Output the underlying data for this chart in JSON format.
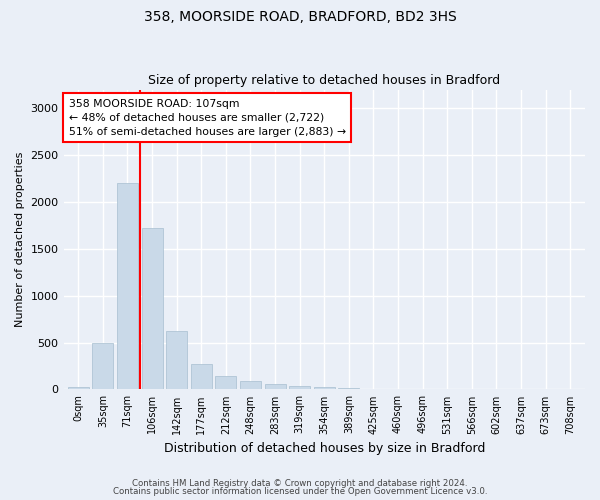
{
  "title": "358, MOORSIDE ROAD, BRADFORD, BD2 3HS",
  "subtitle": "Size of property relative to detached houses in Bradford",
  "xlabel": "Distribution of detached houses by size in Bradford",
  "ylabel": "Number of detached properties",
  "bar_labels": [
    "0sqm",
    "35sqm",
    "71sqm",
    "106sqm",
    "142sqm",
    "177sqm",
    "212sqm",
    "248sqm",
    "283sqm",
    "319sqm",
    "354sqm",
    "389sqm",
    "425sqm",
    "460sqm",
    "496sqm",
    "531sqm",
    "566sqm",
    "602sqm",
    "637sqm",
    "673sqm",
    "708sqm"
  ],
  "bar_values": [
    25,
    500,
    2200,
    1725,
    625,
    270,
    140,
    90,
    55,
    40,
    25,
    15,
    8,
    5,
    3,
    2,
    1,
    1,
    0,
    0,
    0
  ],
  "bar_color": "#c9d9e8",
  "bar_edge_color": "#a8bfd0",
  "bg_color": "#eaeff7",
  "grid_color": "#ffffff",
  "annotation_text": "358 MOORSIDE ROAD: 107sqm\n← 48% of detached houses are smaller (2,722)\n51% of semi-detached houses are larger (2,883) →",
  "annotation_box_color": "white",
  "annotation_border_color": "red",
  "ylim": [
    0,
    3200
  ],
  "yticks": [
    0,
    500,
    1000,
    1500,
    2000,
    2500,
    3000
  ],
  "footer1": "Contains HM Land Registry data © Crown copyright and database right 2024.",
  "footer2": "Contains public sector information licensed under the Open Government Licence v3.0."
}
